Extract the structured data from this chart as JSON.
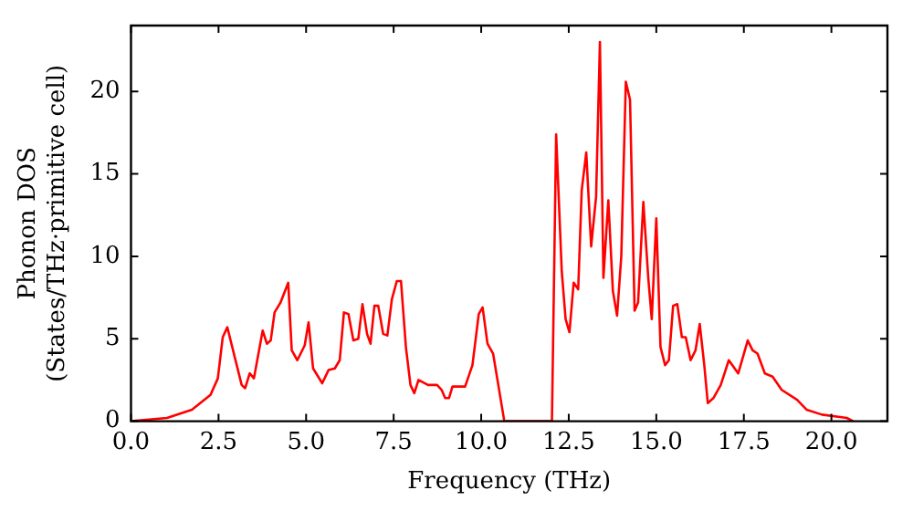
{
  "chart_data": {
    "type": "line",
    "xlabel": "Frequency (THz)",
    "ylabel": "Phonon DOS\n(States/THz·primitive cell)",
    "x": [
      0,
      1.03,
      1.74,
      2.27,
      2.48,
      2.62,
      2.75,
      3.16,
      3.26,
      3.39,
      3.51,
      3.76,
      3.88,
      3.99,
      4.1,
      4.27,
      4.49,
      4.59,
      4.75,
      4.96,
      5.07,
      5.2,
      5.46,
      5.64,
      5.82,
      5.96,
      6.08,
      6.21,
      6.35,
      6.49,
      6.61,
      6.74,
      6.84,
      6.95,
      7.06,
      7.2,
      7.32,
      7.45,
      7.59,
      7.71,
      7.85,
      7.98,
      8.09,
      8.21,
      8.48,
      8.74,
      8.87,
      8.97,
      9.08,
      9.18,
      9.54,
      9.75,
      9.93,
      10.04,
      10.18,
      10.34,
      10.66,
      12.02,
      12.14,
      12.3,
      12.41,
      12.52,
      12.64,
      12.77,
      12.87,
      13.0,
      13.14,
      13.28,
      13.39,
      13.49,
      13.63,
      13.76,
      13.88,
      14.0,
      14.13,
      14.25,
      14.38,
      14.48,
      14.63,
      14.77,
      14.87,
      15.0,
      15.12,
      15.25,
      15.36,
      15.48,
      15.6,
      15.73,
      15.84,
      15.98,
      16.12,
      16.24,
      16.37,
      16.47,
      16.63,
      16.84,
      17.07,
      17.34,
      17.61,
      17.75,
      17.89,
      18.1,
      18.32,
      18.58,
      19.02,
      19.29,
      19.73,
      20.44,
      20.62
    ],
    "series": [
      {
        "color": "#ff0000",
        "values": [
          0,
          0.2,
          0.7,
          1.6,
          2.6,
          5.1,
          5.7,
          2.2,
          2.0,
          2.9,
          2.6,
          5.5,
          4.7,
          4.9,
          6.6,
          7.2,
          8.4,
          4.3,
          3.7,
          4.6,
          6.0,
          3.2,
          2.3,
          3.1,
          3.2,
          3.7,
          6.6,
          6.5,
          4.9,
          5.0,
          7.1,
          5.3,
          4.7,
          7.0,
          7.0,
          5.3,
          5.2,
          7.4,
          8.5,
          8.5,
          4.5,
          2.2,
          1.7,
          2.5,
          2.2,
          2.2,
          1.9,
          1.4,
          1.4,
          2.1,
          2.1,
          3.4,
          6.5,
          6.9,
          4.7,
          4.1,
          0,
          0,
          17.4,
          9.1,
          6.2,
          5.4,
          8.4,
          8.0,
          14.0,
          16.3,
          10.6,
          13.6,
          23.0,
          8.7,
          13.4,
          7.9,
          6.4,
          10.0,
          20.6,
          19.5,
          6.7,
          7.2,
          13.3,
          8.7,
          6.2,
          12.3,
          4.5,
          3.4,
          3.7,
          7.0,
          7.1,
          5.1,
          5.1,
          3.7,
          4.3,
          5.9,
          3.4,
          1.1,
          1.4,
          2.2,
          3.7,
          2.9,
          4.9,
          4.3,
          4.1,
          2.9,
          2.7,
          1.9,
          1.3,
          0.7,
          0.4,
          0.2,
          0
        ]
      }
    ],
    "xlim": [
      0,
      21.6
    ],
    "ylim": [
      0,
      24
    ],
    "xticks": [
      {
        "value": 0,
        "label": "0.0"
      },
      {
        "value": 2.5,
        "label": "2.5"
      },
      {
        "value": 5,
        "label": "5.0"
      },
      {
        "value": 7.5,
        "label": "7.5"
      },
      {
        "value": 10,
        "label": "10.0"
      },
      {
        "value": 12.5,
        "label": "12.5"
      },
      {
        "value": 15,
        "label": "15.0"
      },
      {
        "value": 17.5,
        "label": "17.5"
      },
      {
        "value": 20,
        "label": "20.0"
      }
    ],
    "yticks": [
      0,
      5,
      10,
      15,
      20
    ],
    "grid": false,
    "legend": false,
    "marker": "none",
    "line_style": "solid"
  }
}
